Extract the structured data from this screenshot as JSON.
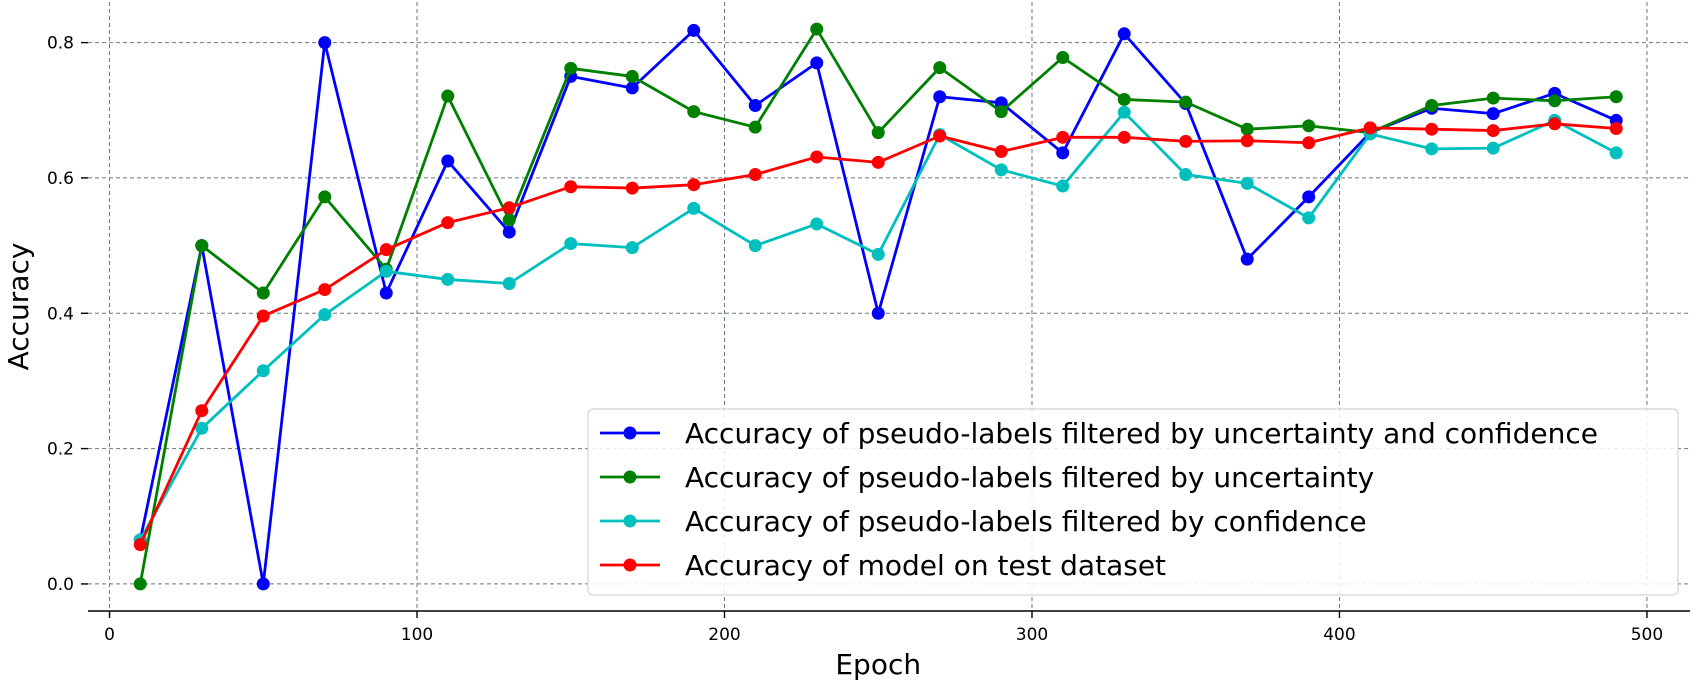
{
  "chart_data": {
    "type": "line",
    "xlabel": "Epoch",
    "ylabel": "Accuracy",
    "xlim": [
      -7,
      514
    ],
    "ylim": [
      -0.04,
      0.86
    ],
    "xticks": [
      0,
      100,
      200,
      300,
      400,
      500
    ],
    "yticks": [
      0.0,
      0.2,
      0.4,
      0.6,
      0.8
    ],
    "xtick_labels": [
      "0",
      "100",
      "200",
      "300",
      "400",
      "500"
    ],
    "ytick_labels": [
      "0.0",
      "0.2",
      "0.4",
      "0.6",
      "0.8"
    ],
    "grid": true,
    "legend_position": "lower-right",
    "x": [
      10,
      30,
      50,
      70,
      90,
      110,
      130,
      150,
      170,
      190,
      210,
      230,
      250,
      270,
      290,
      310,
      330,
      350,
      370,
      390,
      410,
      430,
      450,
      470,
      490
    ],
    "series": [
      {
        "name": "Accuracy of pseudo-labels filtered by uncertainty and confidence",
        "color": "#0000ff",
        "values": [
          0.065,
          0.5,
          0.0,
          0.8,
          0.43,
          0.625,
          0.52,
          0.75,
          0.733,
          0.818,
          0.707,
          0.77,
          0.4,
          0.72,
          0.711,
          0.637,
          0.813,
          0.71,
          0.48,
          0.572,
          0.667,
          0.703,
          0.695,
          0.725,
          0.685
        ]
      },
      {
        "name": "Accuracy of pseudo-labels filtered by uncertainty",
        "color": "#008000",
        "values": [
          0.0,
          0.5,
          0.43,
          0.572,
          0.465,
          0.721,
          0.538,
          0.762,
          0.75,
          0.698,
          0.675,
          0.82,
          0.667,
          0.763,
          0.698,
          0.778,
          0.716,
          0.712,
          0.672,
          0.677,
          0.667,
          0.707,
          0.718,
          0.714,
          0.72
        ]
      },
      {
        "name": "Accuracy of pseudo-labels filtered by confidence",
        "color": "#00bfbf",
        "values": [
          0.065,
          0.23,
          0.315,
          0.398,
          0.462,
          0.45,
          0.444,
          0.503,
          0.497,
          0.555,
          0.5,
          0.532,
          0.487,
          0.664,
          0.612,
          0.588,
          0.697,
          0.605,
          0.592,
          0.541,
          0.665,
          0.643,
          0.644,
          0.685,
          0.637
        ]
      },
      {
        "name": "Accuracy of model on test dataset",
        "color": "#ff0000",
        "values": [
          0.058,
          0.256,
          0.396,
          0.435,
          0.494,
          0.534,
          0.556,
          0.587,
          0.585,
          0.59,
          0.605,
          0.631,
          0.623,
          0.662,
          0.639,
          0.66,
          0.66,
          0.654,
          0.655,
          0.652,
          0.674,
          0.672,
          0.67,
          0.68,
          0.673
        ]
      }
    ]
  }
}
